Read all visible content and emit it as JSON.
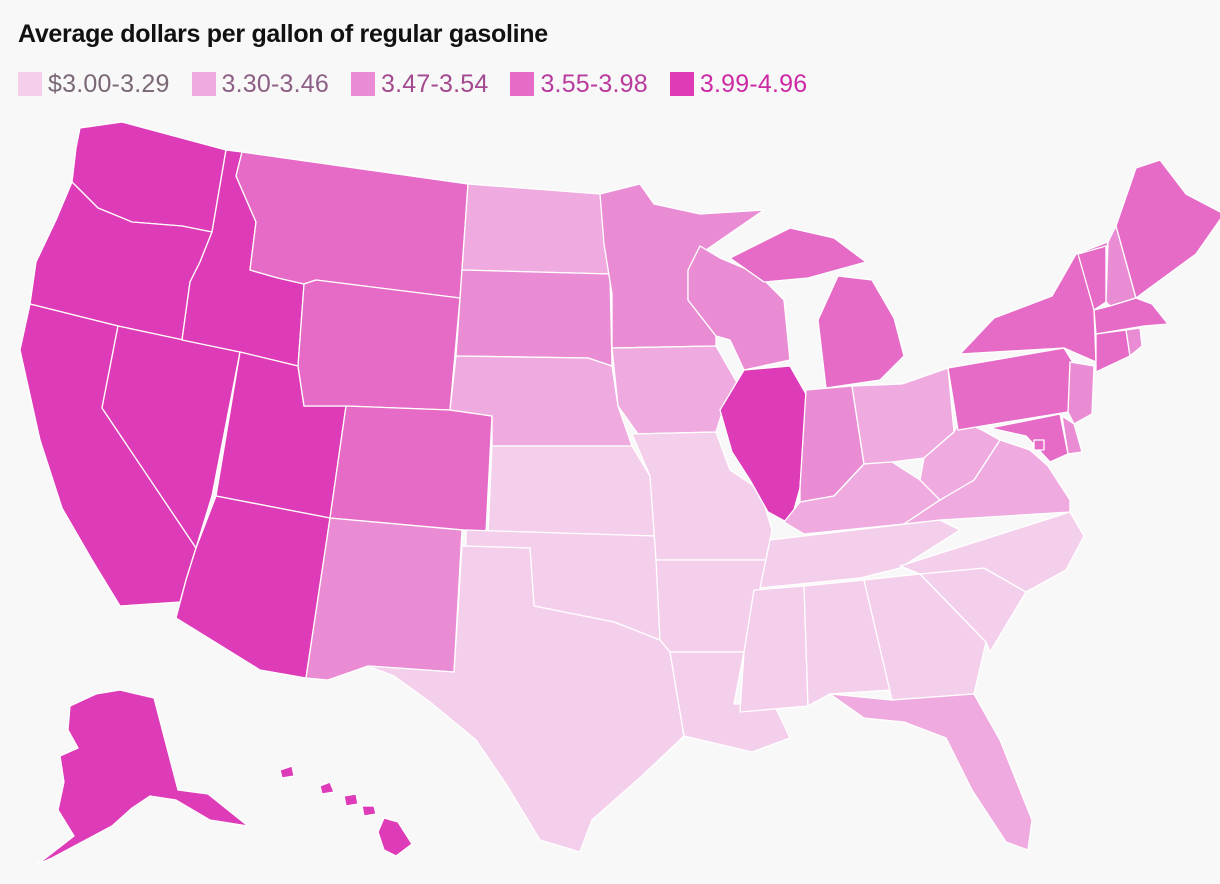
{
  "title": "Average dollars per gallon of regular gasoline",
  "legend": [
    {
      "label": "$3.00-3.29",
      "color": "#f4cfec",
      "text_color": "#7a6877"
    },
    {
      "label": "3.30-3.46",
      "color": "#efaadf",
      "text_color": "#8d5f85"
    },
    {
      "label": "3.47-3.54",
      "color": "#ea8cd4",
      "text_color": "#a2498f"
    },
    {
      "label": "3.55-3.98",
      "color": "#e56bc7",
      "text_color": "#b93a9d"
    },
    {
      "label": "3.99-4.96",
      "color": "#dd3bb8",
      "text_color": "#cc2aa5"
    }
  ],
  "map_data": {
    "type": "choropleth",
    "region": "United States",
    "unit": "dollars per gallon",
    "states": {
      "WA": 4,
      "OR": 4,
      "CA": 4,
      "NV": 4,
      "ID": 4,
      "UT": 4,
      "AZ": 4,
      "IL": 4,
      "AK": 4,
      "HI": 4,
      "MT": 3,
      "WY": 3,
      "CO": 3,
      "MI": 3,
      "PA": 3,
      "NY": 3,
      "VT": 3,
      "ME": 3,
      "MA": 3,
      "CT": 3,
      "MD": 3,
      "DC": 3,
      "SD": 2,
      "MN": 2,
      "NM": 2,
      "WI": 2,
      "IN": 2,
      "NJ": 2,
      "NH": 2,
      "RI": 2,
      "DE": 2,
      "ND": 1,
      "NE": 1,
      "IA": 1,
      "OH": 1,
      "KY": 1,
      "WV": 1,
      "VA": 1,
      "FL": 1,
      "KS": 0,
      "OK": 0,
      "TX": 0,
      "MO": 0,
      "AR": 0,
      "LA": 0,
      "MS": 0,
      "AL": 0,
      "GA": 0,
      "SC": 0,
      "NC": 0,
      "TN": 0
    }
  }
}
